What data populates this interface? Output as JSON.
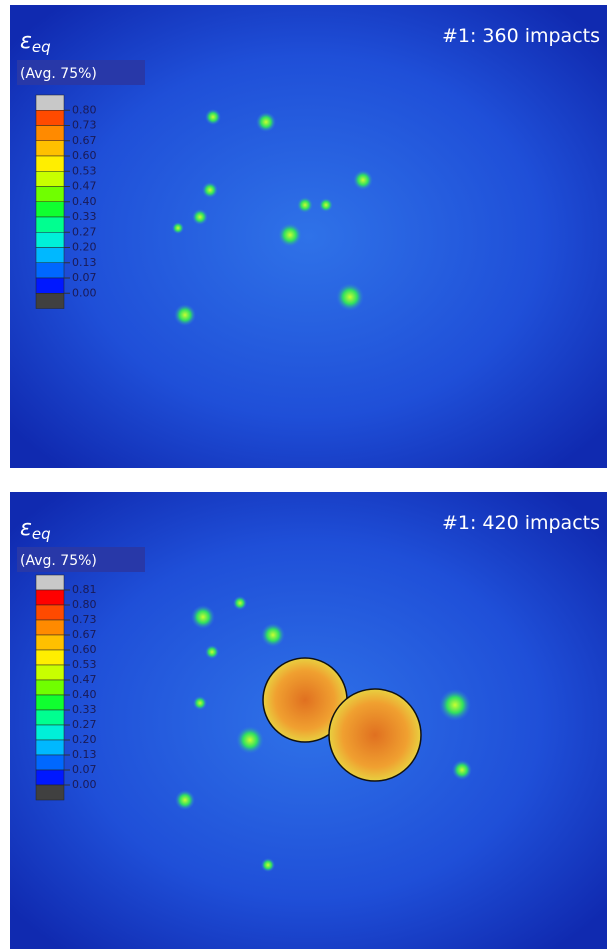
{
  "panels": [
    {
      "symbol": "ε",
      "symbol_subscript": "eq",
      "averaging": "(Avg. 75%)",
      "title": "#1: 360 impacts",
      "legend_labels": [
        "0.80",
        "0.73",
        "0.67",
        "0.60",
        "0.53",
        "0.47",
        "0.40",
        "0.33",
        "0.27",
        "0.20",
        "0.13",
        "0.07",
        "0.00"
      ]
    },
    {
      "symbol": "ε",
      "symbol_subscript": "eq",
      "averaging": "(Avg. 75%)",
      "title": "#1: 420 impacts",
      "legend_labels": [
        "0.81",
        "0.80",
        "0.73",
        "0.67",
        "0.60",
        "0.53",
        "0.47",
        "0.40",
        "0.33",
        "0.27",
        "0.20",
        "0.13",
        "0.07",
        "0.00"
      ]
    }
  ]
}
